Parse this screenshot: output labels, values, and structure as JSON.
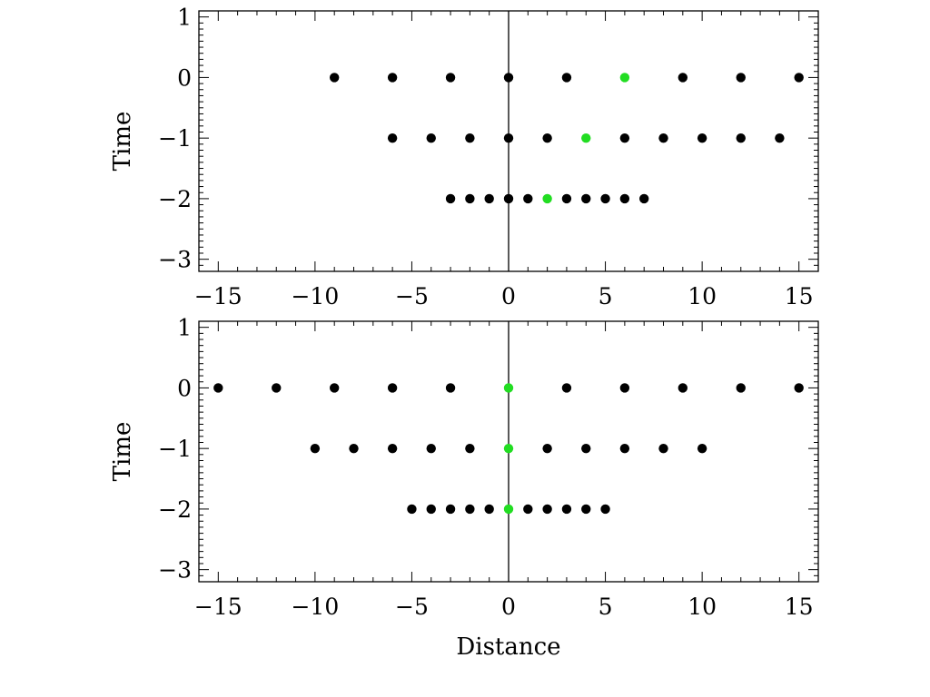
{
  "figure": {
    "background": "#ffffff",
    "axis_color": "#000000",
    "point_color": "#000000",
    "highlight_color": "#22dd22"
  },
  "chart_data": [
    {
      "type": "scatter",
      "title": "",
      "xlabel": "",
      "ylabel": "Time",
      "xlim": [
        -16,
        16
      ],
      "ylim": [
        -3.2,
        1.1
      ],
      "x_ticks": [
        -15,
        -10,
        -5,
        0,
        5,
        10,
        15
      ],
      "x_tick_labels": [
        "−15",
        "−10",
        "−5",
        "0",
        "5",
        "10",
        "15"
      ],
      "y_ticks": [
        -3,
        -2,
        -1,
        0,
        1
      ],
      "y_tick_labels": [
        "−3",
        "−2",
        "−1",
        "0",
        "1"
      ],
      "vertical_line_x": 0,
      "grid": false,
      "series": [
        {
          "role": "points",
          "points": [
            [
              -9,
              0
            ],
            [
              -6,
              0
            ],
            [
              -3,
              0
            ],
            [
              0,
              0
            ],
            [
              3,
              0
            ],
            [
              9,
              0
            ],
            [
              12,
              0
            ],
            [
              15,
              0
            ],
            [
              -6,
              -1
            ],
            [
              -4,
              -1
            ],
            [
              -2,
              -1
            ],
            [
              0,
              -1
            ],
            [
              2,
              -1
            ],
            [
              6,
              -1
            ],
            [
              8,
              -1
            ],
            [
              10,
              -1
            ],
            [
              12,
              -1
            ],
            [
              14,
              -1
            ],
            [
              -3,
              -2
            ],
            [
              -2,
              -2
            ],
            [
              -1,
              -2
            ],
            [
              0,
              -2
            ],
            [
              1,
              -2
            ],
            [
              3,
              -2
            ],
            [
              4,
              -2
            ],
            [
              5,
              -2
            ],
            [
              6,
              -2
            ],
            [
              7,
              -2
            ]
          ]
        },
        {
          "role": "highlight",
          "points": [
            [
              6,
              0
            ],
            [
              4,
              -1
            ],
            [
              2,
              -2
            ]
          ]
        }
      ]
    },
    {
      "type": "scatter",
      "title": "",
      "xlabel": "Distance",
      "ylabel": "Time",
      "xlim": [
        -16,
        16
      ],
      "ylim": [
        -3.2,
        1.1
      ],
      "x_ticks": [
        -15,
        -10,
        -5,
        0,
        5,
        10,
        15
      ],
      "x_tick_labels": [
        "−15",
        "−10",
        "−5",
        "0",
        "5",
        "10",
        "15"
      ],
      "y_ticks": [
        -3,
        -2,
        -1,
        0,
        1
      ],
      "y_tick_labels": [
        "−3",
        "−2",
        "−1",
        "0",
        "1"
      ],
      "vertical_line_x": 0,
      "grid": false,
      "series": [
        {
          "role": "points",
          "points": [
            [
              -15,
              0
            ],
            [
              -12,
              0
            ],
            [
              -9,
              0
            ],
            [
              -6,
              0
            ],
            [
              -3,
              0
            ],
            [
              3,
              0
            ],
            [
              6,
              0
            ],
            [
              9,
              0
            ],
            [
              12,
              0
            ],
            [
              15,
              0
            ],
            [
              -10,
              -1
            ],
            [
              -8,
              -1
            ],
            [
              -6,
              -1
            ],
            [
              -4,
              -1
            ],
            [
              -2,
              -1
            ],
            [
              2,
              -1
            ],
            [
              4,
              -1
            ],
            [
              6,
              -1
            ],
            [
              8,
              -1
            ],
            [
              10,
              -1
            ],
            [
              -5,
              -2
            ],
            [
              -4,
              -2
            ],
            [
              -3,
              -2
            ],
            [
              -2,
              -2
            ],
            [
              -1,
              -2
            ],
            [
              1,
              -2
            ],
            [
              2,
              -2
            ],
            [
              3,
              -2
            ],
            [
              4,
              -2
            ],
            [
              5,
              -2
            ]
          ]
        },
        {
          "role": "highlight",
          "points": [
            [
              0,
              0
            ],
            [
              0,
              -1
            ],
            [
              0,
              -2
            ]
          ]
        }
      ]
    }
  ]
}
